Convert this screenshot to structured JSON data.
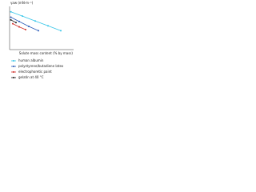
{
  "chart_data": {
    "type": "line",
    "y_label": "γaw (mN·m⁻¹)",
    "x_label": "Solute mass content (% by mass)",
    "xlim": [
      0,
      100
    ],
    "ylim": [
      0,
      80
    ],
    "series": [
      {
        "name": "human albumin",
        "color": "#33c4e8",
        "x": [
          2,
          20,
          40,
          60,
          80
        ],
        "values": [
          70,
          62,
          53,
          44,
          35
        ]
      },
      {
        "name": "polystyrene/butadiene latex",
        "color": "#2a5bb8",
        "x": [
          2,
          15,
          30,
          45
        ],
        "values": [
          60,
          52,
          43,
          35
        ]
      },
      {
        "name": "electrophoretic paint",
        "color": "#d0302a",
        "x": [
          5,
          15,
          25
        ],
        "values": [
          48,
          42,
          37
        ]
      },
      {
        "name": "gelatin at 40 °C",
        "color": "#222222",
        "x": [
          2,
          10
        ],
        "values": [
          55,
          50
        ]
      }
    ]
  }
}
